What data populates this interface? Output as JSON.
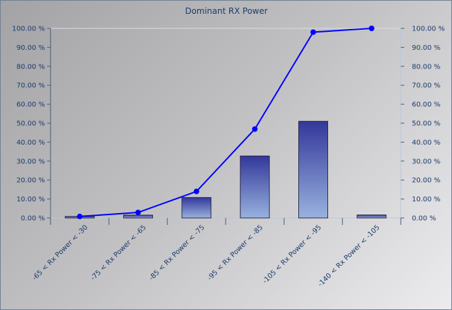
{
  "chart_data": {
    "type": "bar",
    "title": "Dominant RX Power",
    "categories": [
      "-65 < Rx Power < -30",
      "-75 < Rx Power < -65",
      "-85 < Rx Power < -75",
      "-95 < Rx Power < -85",
      "-105 < Rx Power < -95",
      "-140 < Rx Power < -105"
    ],
    "series": [
      {
        "type": "bar",
        "values": [
          0.8,
          1.5,
          10.8,
          32.7,
          51.0,
          1.6
        ],
        "color": "#3a3f9e"
      },
      {
        "type": "line",
        "values": [
          0.8,
          2.9,
          14.0,
          46.9,
          98.0,
          100.0
        ],
        "color": "#0000ff"
      }
    ],
    "ylim": [
      0,
      100
    ],
    "left_ticks": [
      "0.00 %",
      "10.00 %",
      "20.00 %",
      "30.00 %",
      "40.00 %",
      "50.00 %",
      "60.00 %",
      "70.00 %",
      "80.00 %",
      "90.00 %",
      "100.00 %"
    ],
    "right_ticks": [
      "0.00 %",
      "10.00 %",
      "20.00 %",
      "30.00 %",
      "40.00 %",
      "50.00 %",
      "60.00 %",
      "70.00 %",
      "80.00 %",
      "90.00 %",
      "100.00 %"
    ],
    "grid": false,
    "legend": "none"
  }
}
